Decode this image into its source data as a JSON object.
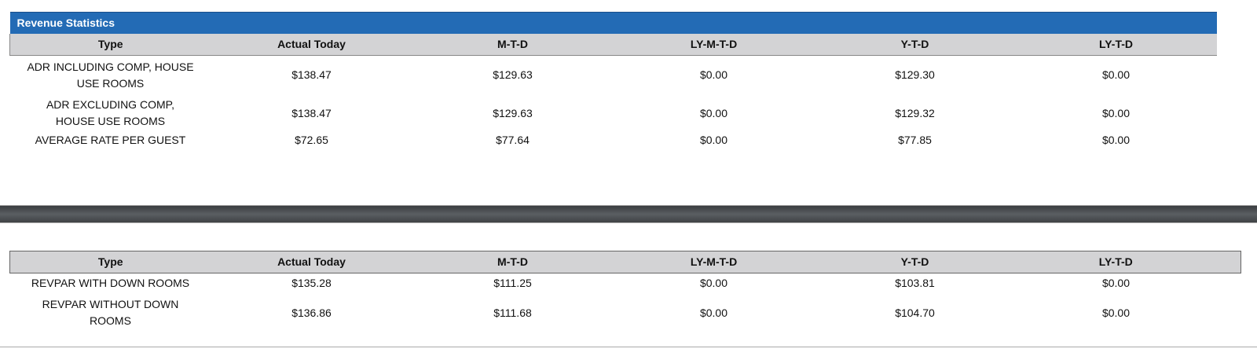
{
  "section1": {
    "title": "Revenue Statistics",
    "columns": [
      "Type",
      "Actual Today",
      "M-T-D",
      "LY-M-T-D",
      "Y-T-D",
      "LY-T-D"
    ],
    "rows": [
      [
        "ADR INCLUDING COMP, HOUSE USE ROOMS",
        "$138.47",
        "$129.63",
        "$0.00",
        "$129.30",
        "$0.00"
      ],
      [
        "ADR EXCLUDING COMP, HOUSE USE ROOMS",
        "$138.47",
        "$129.63",
        "$0.00",
        "$129.32",
        "$0.00"
      ],
      [
        "AVERAGE RATE PER GUEST",
        "$72.65",
        "$77.64",
        "$0.00",
        "$77.85",
        "$0.00"
      ]
    ]
  },
  "section2": {
    "columns": [
      "Type",
      "Actual Today",
      "M-T-D",
      "LY-M-T-D",
      "Y-T-D",
      "LY-T-D"
    ],
    "rows": [
      [
        "REVPAR WITH DOWN ROOMS",
        "$135.28",
        "$111.25",
        "$0.00",
        "$103.81",
        "$0.00"
      ],
      [
        "REVPAR WITHOUT DOWN ROOMS",
        "$136.86",
        "$111.68",
        "$0.00",
        "$104.70",
        "$0.00"
      ]
    ]
  },
  "colors": {
    "title_bar": "#236bb5",
    "header": "#d3d3d5",
    "divider_band": "#4a4d50"
  }
}
